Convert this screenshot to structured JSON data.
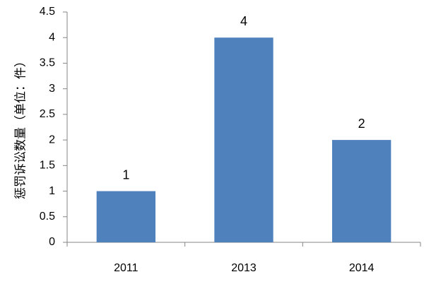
{
  "chart_data": {
    "type": "bar",
    "y_label": "惩罚诉讼数量（单位：件）",
    "categories": [
      "2011",
      "2013",
      "2014"
    ],
    "values": [
      1,
      4,
      2
    ],
    "color": "#4f81bd",
    "ylim": [
      0,
      4.5
    ],
    "yticks": [
      0,
      0.5,
      1,
      1.5,
      2,
      2.5,
      3,
      3.5,
      4,
      4.5
    ],
    "grid": false,
    "data_labels": true
  }
}
